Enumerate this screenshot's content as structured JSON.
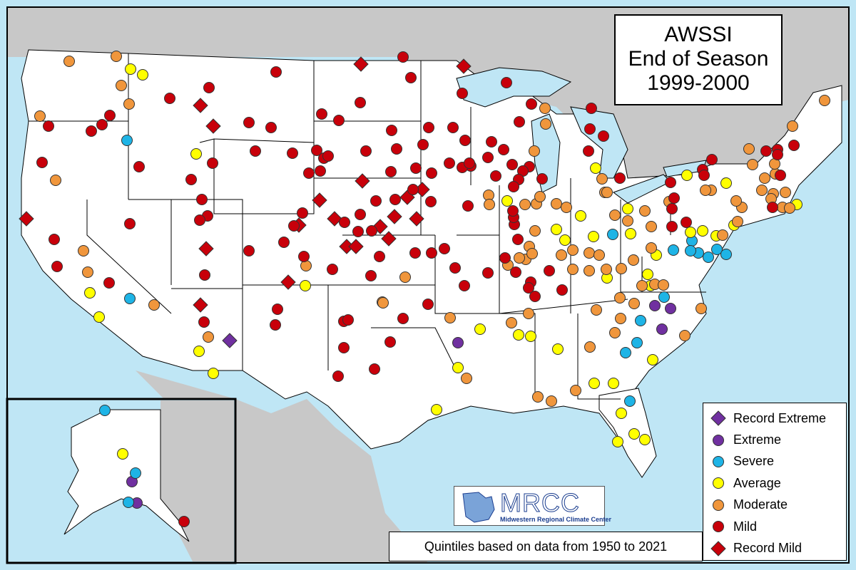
{
  "title": {
    "line1": "AWSSI",
    "line2": "End of Season",
    "line3": "1999-2000"
  },
  "footnote": "Quintiles based on data from 1950 to 2021",
  "logo": {
    "name": "MRCC",
    "subtitle": "Midwestern Regional Climate Center"
  },
  "legend": [
    {
      "label": "Record Extreme",
      "shape": "diamond",
      "color": "#7030a0"
    },
    {
      "label": "Extreme",
      "shape": "circle",
      "color": "#7030a0"
    },
    {
      "label": "Severe",
      "shape": "circle",
      "color": "#1eb4e6"
    },
    {
      "label": "Average",
      "shape": "circle",
      "color": "#ffff00"
    },
    {
      "label": "Moderate",
      "shape": "circle",
      "color": "#f0963c"
    },
    {
      "label": "Mild",
      "shape": "circle",
      "color": "#c8000a"
    },
    {
      "label": "Record Mild",
      "shape": "diamond",
      "color": "#c8000a"
    }
  ],
  "colors": {
    "ocean": "#bfe6f5",
    "land_foreign": "#c8c8c8",
    "land_us": "#ffffff",
    "lakes": "#bfe6f5"
  }
}
